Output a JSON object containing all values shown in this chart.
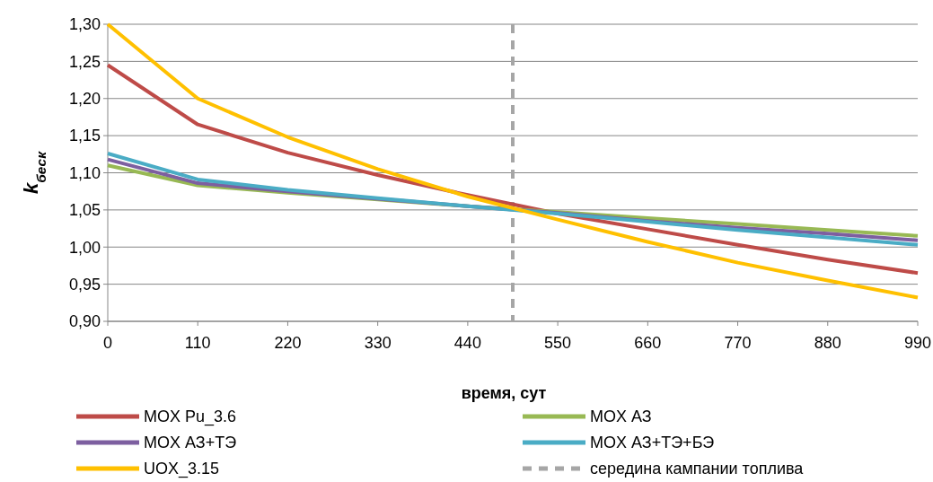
{
  "chart_data": {
    "type": "line",
    "xlabel": "время, сут",
    "ylabel": "k$_{беск}$",
    "x": [
      0,
      110,
      220,
      330,
      440,
      550,
      660,
      770,
      880,
      990
    ],
    "xlim": [
      0,
      990
    ],
    "xticks": [
      0,
      110,
      220,
      330,
      440,
      550,
      660,
      770,
      880,
      990
    ],
    "ylim": [
      0.9,
      1.3
    ],
    "yticks": [
      {
        "value": 0.9,
        "label": "0,90"
      },
      {
        "value": 0.95,
        "label": "0,95"
      },
      {
        "value": 1.0,
        "label": "1,00"
      },
      {
        "value": 1.05,
        "label": "1,05"
      },
      {
        "value": 1.1,
        "label": "1,10"
      },
      {
        "value": 1.15,
        "label": "1,15"
      },
      {
        "value": 1.2,
        "label": "1,20"
      },
      {
        "value": 1.25,
        "label": "1,25"
      },
      {
        "value": 1.3,
        "label": "1,30"
      }
    ],
    "grid": "y",
    "legend": "bottom",
    "series": [
      {
        "name": "MOX Pu_3.6",
        "color": "#be4b48",
        "values": [
          1.245,
          1.165,
          1.127,
          1.097,
          1.07,
          1.045,
          1.024,
          1.003,
          0.983,
          0.965
        ]
      },
      {
        "name": "MOX АЗ",
        "color": "#98b954",
        "values": [
          1.11,
          1.083,
          1.073,
          1.064,
          1.055,
          1.047,
          1.039,
          1.031,
          1.023,
          1.015
        ]
      },
      {
        "name": "MOX АЗ+ТЭ",
        "color": "#7d5fa0",
        "values": [
          1.118,
          1.086,
          1.075,
          1.065,
          1.055,
          1.046,
          1.035,
          1.026,
          1.018,
          1.009
        ]
      },
      {
        "name": "MOX АЗ+ТЭ+БЭ",
        "color": "#4aacc5",
        "values": [
          1.126,
          1.091,
          1.077,
          1.066,
          1.055,
          1.045,
          1.034,
          1.023,
          1.013,
          1.003
        ]
      },
      {
        "name": "UOX_3.15",
        "color": "#ffc000",
        "values": [
          1.3,
          1.2,
          1.148,
          1.105,
          1.068,
          1.037,
          1.007,
          0.979,
          0.955,
          0.932
        ]
      }
    ],
    "ref_lines": [
      {
        "axis": "x",
        "value": 495,
        "label": "середина кампании топлива",
        "color": "#a6a6a6",
        "line_style": "dashed"
      }
    ]
  }
}
